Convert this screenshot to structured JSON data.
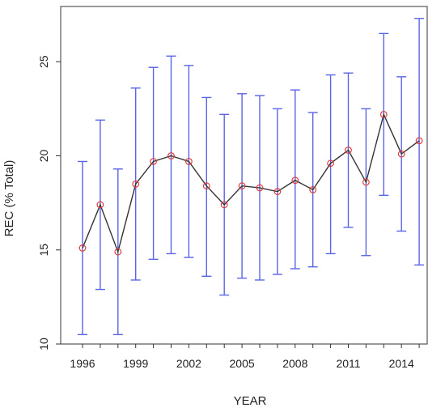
{
  "chart_data": {
    "type": "line",
    "title": "",
    "xlabel": "YEAR",
    "ylabel": "REC (% Total)",
    "x": [
      1996,
      1997,
      1998,
      1999,
      2000,
      2001,
      2002,
      2003,
      2004,
      2005,
      2006,
      2007,
      2008,
      2009,
      2010,
      2011,
      2012,
      2013,
      2014,
      2015
    ],
    "series": [
      {
        "values": [
          15.1,
          17.4,
          14.9,
          18.5,
          19.7,
          20.0,
          19.7,
          18.4,
          17.4,
          18.4,
          18.3,
          18.1,
          18.7,
          18.2,
          19.6,
          20.3,
          18.6,
          22.2,
          20.1,
          20.8
        ],
        "lower": [
          10.5,
          12.9,
          10.5,
          13.4,
          14.5,
          14.8,
          14.6,
          13.6,
          12.6,
          13.5,
          13.4,
          13.7,
          14.0,
          14.1,
          14.8,
          16.2,
          14.7,
          17.9,
          16.0,
          14.2
        ],
        "upper": [
          19.7,
          21.9,
          19.3,
          23.6,
          24.7,
          25.3,
          24.8,
          23.1,
          22.2,
          23.3,
          23.2,
          22.5,
          23.5,
          22.3,
          24.3,
          24.4,
          22.5,
          26.5,
          24.2,
          27.3
        ]
      }
    ],
    "xticks": [
      "1996",
      "1999",
      "2002",
      "2005",
      "2008",
      "2011",
      "2014"
    ],
    "yticks": [
      "10",
      "15",
      "20",
      "25"
    ],
    "xlim": [
      1995.3,
      2015.7
    ],
    "ylim": [
      10,
      28
    ],
    "grid": false,
    "legend": "none",
    "colors": {
      "errorbar": "#5a64e6",
      "line": "#333333",
      "point": "#e03c3c",
      "axis": "#333333"
    }
  }
}
